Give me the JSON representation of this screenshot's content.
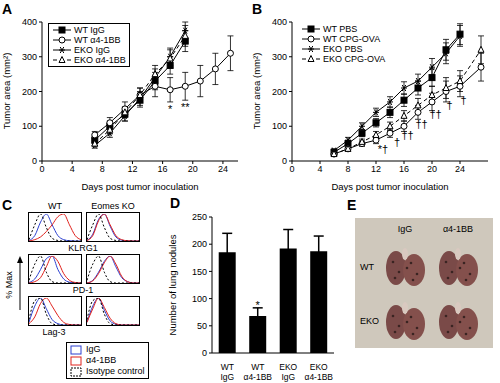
{
  "chart_data": [
    {
      "panel": "A",
      "type": "line",
      "xlabel": "Days post tumor inoculation",
      "ylabel": "Tumor area (mm²)",
      "xlim": [
        0,
        26
      ],
      "xticks": [
        0,
        4,
        8,
        12,
        16,
        20,
        24
      ],
      "ylim": [
        0,
        400
      ],
      "yticks": [
        0,
        100,
        200,
        300,
        400
      ],
      "legend": "upper left",
      "series": [
        {
          "name": "WT IgG",
          "color": "#000000",
          "marker": "square",
          "line_style": "solid",
          "x": [
            7,
            9,
            11,
            13,
            15,
            17,
            19
          ],
          "values": [
            60,
            100,
            135,
            175,
            230,
            275,
            345
          ],
          "errors": [
            10,
            15,
            20,
            20,
            25,
            25,
            30
          ]
        },
        {
          "name": "WT α4-1BB",
          "color": "#000000",
          "marker": "circle",
          "line_style": "solid",
          "x": [
            7,
            9,
            11,
            13,
            15,
            17,
            19,
            21,
            23,
            25
          ],
          "values": [
            75,
            110,
            150,
            190,
            215,
            205,
            215,
            230,
            265,
            310
          ],
          "errors": [
            10,
            15,
            20,
            20,
            30,
            35,
            40,
            45,
            45,
            50
          ]
        },
        {
          "name": "EKO IgG",
          "color": "#000000",
          "marker": "star",
          "line_style": "solid",
          "x": [
            7,
            9,
            11,
            13,
            15,
            17,
            19
          ],
          "values": [
            45,
            80,
            130,
            180,
            240,
            300,
            375
          ],
          "errors": [
            8,
            12,
            15,
            20,
            25,
            25,
            25
          ]
        },
        {
          "name": "EKO α4-1BB",
          "color": "#000000",
          "marker": "triangle",
          "line_style": "dashed",
          "x": [
            7,
            9,
            11,
            13,
            15,
            17,
            19
          ],
          "values": [
            50,
            90,
            140,
            190,
            250,
            295,
            360
          ],
          "errors": [
            8,
            12,
            15,
            20,
            25,
            25,
            30
          ]
        }
      ],
      "annotations": [
        {
          "x": 17,
          "y": 150,
          "text": "*"
        },
        {
          "x": 19,
          "y": 155,
          "text": "**"
        }
      ]
    },
    {
      "panel": "B",
      "type": "line",
      "xlabel": "Days post tumor inoculation",
      "ylabel": "Tumor area (mm²)",
      "xlim": [
        0,
        28
      ],
      "xticks": [
        0,
        4,
        8,
        12,
        16,
        20,
        24
      ],
      "ylim": [
        0,
        400
      ],
      "yticks": [
        0,
        100,
        200,
        300,
        400
      ],
      "legend": "upper left",
      "series": [
        {
          "name": "WT PBS",
          "color": "#000000",
          "marker": "square",
          "line_style": "solid",
          "x": [
            6,
            8,
            10,
            12,
            14,
            16,
            18,
            20,
            22,
            24
          ],
          "values": [
            25,
            50,
            80,
            110,
            140,
            175,
            210,
            240,
            320,
            365
          ],
          "errors": [
            5,
            8,
            10,
            12,
            15,
            18,
            20,
            25,
            30,
            30
          ]
        },
        {
          "name": "WT CPG-OVA",
          "color": "#000000",
          "marker": "circle",
          "line_style": "solid",
          "x": [
            6,
            8,
            10,
            12,
            14,
            16,
            18,
            20,
            22,
            24,
            27
          ],
          "values": [
            20,
            35,
            50,
            60,
            80,
            100,
            140,
            170,
            200,
            215,
            270
          ],
          "errors": [
            5,
            6,
            8,
            10,
            12,
            15,
            20,
            25,
            30,
            30,
            40
          ]
        },
        {
          "name": "EKO PBS",
          "color": "#000000",
          "marker": "star",
          "line_style": "solid",
          "x": [
            6,
            8,
            10,
            12,
            14,
            16,
            18,
            20,
            22,
            24
          ],
          "values": [
            30,
            60,
            100,
            140,
            170,
            210,
            230,
            270,
            310,
            360
          ],
          "errors": [
            5,
            8,
            10,
            12,
            15,
            18,
            20,
            25,
            30,
            30
          ]
        },
        {
          "name": "EKO CPG-OVA",
          "color": "#000000",
          "marker": "triangle",
          "line_style": "dashed",
          "x": [
            6,
            8,
            10,
            12,
            14,
            16,
            18,
            20,
            22,
            24,
            27
          ],
          "values": [
            20,
            35,
            55,
            75,
            100,
            130,
            160,
            190,
            210,
            230,
            320
          ],
          "errors": [
            5,
            6,
            8,
            10,
            12,
            15,
            20,
            25,
            30,
            30,
            40
          ]
        }
      ],
      "annotations": [
        {
          "x": 13,
          "y": 35,
          "text": "*†"
        },
        {
          "x": 15,
          "y": 55,
          "text": "†"
        },
        {
          "x": 16.5,
          "y": 75,
          "text": "††"
        },
        {
          "x": 18.5,
          "y": 105,
          "text": "††"
        },
        {
          "x": 20.5,
          "y": 135,
          "text": "††"
        },
        {
          "x": 22.5,
          "y": 160,
          "text": "†"
        },
        {
          "x": 24.5,
          "y": 175,
          "text": "†"
        }
      ]
    },
    {
      "panel": "C",
      "type": "line",
      "ylabel": "% Max",
      "columns": [
        "WT",
        "Eomes KO"
      ],
      "rows": [
        "KLRG1",
        "PD-1",
        "Lag-3"
      ],
      "x": [
        0,
        1,
        2,
        3,
        4,
        5,
        6,
        7,
        8,
        9
      ],
      "xlim": [
        0,
        9
      ],
      "ylim": [
        0,
        100
      ],
      "tick_labels": false,
      "legend": "lower right",
      "series": [
        {
          "name": "IgG",
          "color": "#2b3fd0",
          "line_style": "solid",
          "values": [
            [
              [
                2,
                20,
                70,
                100,
                60,
                20,
                5,
                1,
                0,
                0
              ],
              [
                2,
                25,
                80,
                100,
                55,
                15,
                3,
                0,
                0,
                0
              ]
            ],
            [
              [
                2,
                15,
                50,
                90,
                100,
                50,
                15,
                3,
                0,
                0
              ],
              [
                0,
                10,
                40,
                80,
                100,
                60,
                20,
                5,
                0,
                0
              ]
            ],
            [
              [
                10,
                70,
                100,
                60,
                20,
                5,
                0,
                0,
                0,
                0
              ],
              [
                10,
                70,
                100,
                55,
                15,
                3,
                0,
                0,
                0,
                0
              ]
            ]
          ]
        },
        {
          "name": "α4-1BB",
          "color": "#e0201b",
          "line_style": "solid",
          "values": [
            [
              [
                0,
                5,
                15,
                35,
                60,
                90,
                100,
                60,
                20,
                5
              ],
              [
                2,
                20,
                75,
                100,
                60,
                20,
                5,
                1,
                0,
                0
              ]
            ],
            [
              [
                0,
                5,
                20,
                60,
                100,
                80,
                35,
                10,
                2,
                0
              ],
              [
                0,
                8,
                35,
                75,
                100,
                70,
                25,
                5,
                0,
                0
              ]
            ],
            [
              [
                5,
                30,
                80,
                100,
                70,
                35,
                10,
                2,
                0,
                0
              ],
              [
                10,
                60,
                100,
                65,
                25,
                5,
                0,
                0,
                0,
                0
              ]
            ]
          ]
        },
        {
          "name": "Isotype control",
          "color": "#000000",
          "line_style": "dashed",
          "values": [
            [
              [
                5,
                60,
                100,
                50,
                10,
                2,
                0,
                0,
                0,
                0
              ],
              [
                5,
                60,
                100,
                50,
                10,
                2,
                0,
                0,
                0,
                0
              ]
            ],
            [
              [
                10,
                70,
                100,
                40,
                5,
                0,
                0,
                0,
                0,
                0
              ],
              [
                10,
                70,
                100,
                40,
                5,
                0,
                0,
                0,
                0,
                0
              ]
            ],
            [
              [
                20,
                90,
                100,
                40,
                5,
                0,
                0,
                0,
                0,
                0
              ],
              [
                20,
                90,
                100,
                40,
                5,
                0,
                0,
                0,
                0,
                0
              ]
            ]
          ]
        }
      ]
    },
    {
      "panel": "D",
      "type": "bar",
      "ylabel": "Number of lung nodules",
      "categories": [
        "WT IgG",
        "WT α4-1BB",
        "EKO IgG",
        "EKO α4-1BB"
      ],
      "values": [
        185,
        68,
        192,
        187
      ],
      "errors": [
        35,
        15,
        35,
        28
      ],
      "color": "#000000",
      "ylim": [
        0,
        250
      ],
      "yticks": [
        0,
        50,
        100,
        150,
        200,
        250
      ],
      "annotations": [
        {
          "x": 1,
          "y": 88,
          "text": "*"
        }
      ]
    }
  ],
  "photo": {
    "panel": "E",
    "columns": [
      "IgG",
      "α4-1BB"
    ],
    "rows": [
      "WT",
      "EKO"
    ]
  }
}
